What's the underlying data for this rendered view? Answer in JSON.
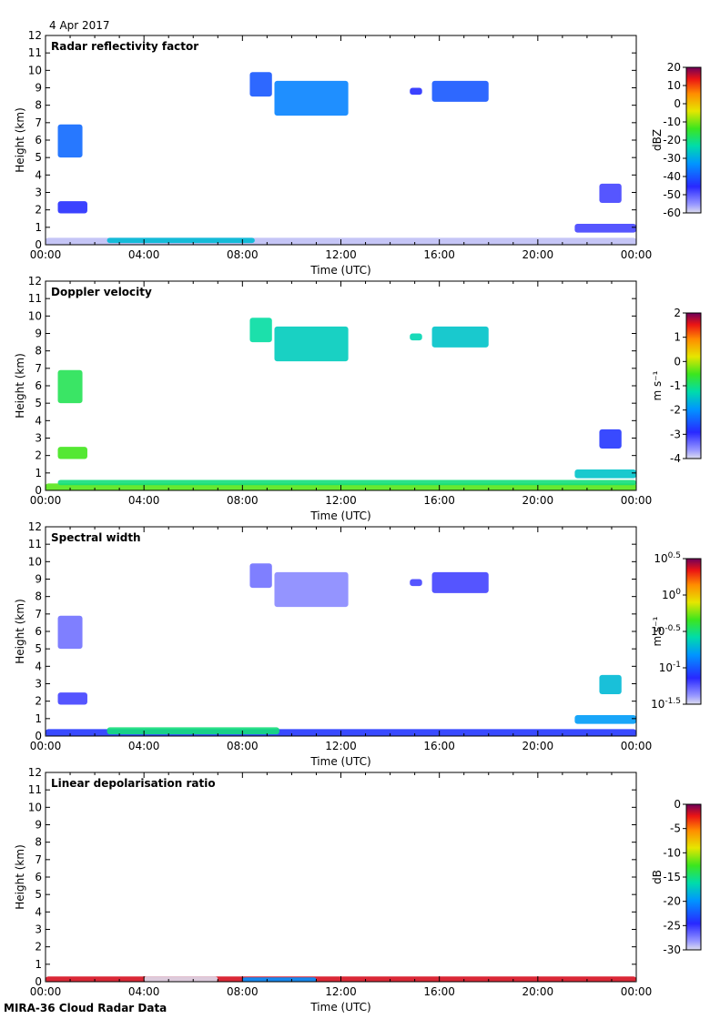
{
  "date": "4 Apr 2017",
  "footer": "MIRA-36 Cloud Radar Data",
  "chart_data": [
    {
      "type": "heatmap",
      "title": "Radar reflectivity factor",
      "xlabel": "Time (UTC)",
      "ylabel": "Height (km)",
      "xticks": [
        "00:00",
        "04:00",
        "08:00",
        "12:00",
        "16:00",
        "20:00",
        "00:00"
      ],
      "xlim_hours": [
        0,
        24
      ],
      "ylim": [
        0,
        12
      ],
      "yticks": [
        "0",
        "1",
        "2",
        "3",
        "4",
        "5",
        "6",
        "7",
        "8",
        "9",
        "10",
        "11",
        "12"
      ],
      "colorbar": {
        "label": "dBZ",
        "range": [
          -60,
          20
        ],
        "ticks": [
          "20",
          "10",
          "0",
          "-10",
          "-20",
          "-30",
          "-40",
          "-50",
          "-60"
        ]
      },
      "features": [
        {
          "t0": 8.3,
          "t1": 9.2,
          "h0": 8.5,
          "h1": 9.9,
          "value": -40
        },
        {
          "t0": 9.3,
          "t1": 12.3,
          "h0": 7.4,
          "h1": 9.4,
          "value": -35
        },
        {
          "t0": 14.8,
          "t1": 15.3,
          "h0": 8.6,
          "h1": 9.0,
          "value": -45
        },
        {
          "t0": 15.7,
          "t1": 18.0,
          "h0": 8.2,
          "h1": 9.4,
          "value": -40
        },
        {
          "t0": 0.5,
          "t1": 1.5,
          "h0": 5.0,
          "h1": 6.9,
          "value": -38
        },
        {
          "t0": 0.5,
          "t1": 1.7,
          "h0": 1.8,
          "h1": 2.5,
          "value": -45
        },
        {
          "t0": 22.5,
          "t1": 23.4,
          "h0": 2.4,
          "h1": 3.5,
          "value": -48
        },
        {
          "t0": 21.5,
          "t1": 24.0,
          "h0": 0.7,
          "h1": 1.2,
          "value": -48
        },
        {
          "t0": 0.0,
          "t1": 24.0,
          "h0": 0.0,
          "h1": 0.4,
          "value": -58
        },
        {
          "t0": 2.5,
          "t1": 8.5,
          "h0": 0.1,
          "h1": 0.4,
          "value": -28
        }
      ]
    },
    {
      "type": "heatmap",
      "title": "Doppler velocity",
      "xlabel": "Time (UTC)",
      "ylabel": "Height (km)",
      "xticks": [
        "00:00",
        "04:00",
        "08:00",
        "12:00",
        "16:00",
        "20:00",
        "00:00"
      ],
      "xlim_hours": [
        0,
        24
      ],
      "ylim": [
        0,
        12
      ],
      "yticks": [
        "0",
        "1",
        "2",
        "3",
        "4",
        "5",
        "6",
        "7",
        "8",
        "9",
        "10",
        "11",
        "12"
      ],
      "colorbar": {
        "label": "m s⁻¹",
        "range": [
          -4,
          2
        ],
        "ticks": [
          "2",
          "1",
          "0",
          "-1",
          "-2",
          "-3",
          "-4"
        ]
      },
      "features": [
        {
          "t0": 8.3,
          "t1": 9.2,
          "h0": 8.5,
          "h1": 9.9,
          "value": -1.2
        },
        {
          "t0": 9.3,
          "t1": 12.3,
          "h0": 7.4,
          "h1": 9.4,
          "value": -1.4
        },
        {
          "t0": 14.8,
          "t1": 15.3,
          "h0": 8.6,
          "h1": 9.0,
          "value": -1.3
        },
        {
          "t0": 15.7,
          "t1": 18.0,
          "h0": 8.2,
          "h1": 9.4,
          "value": -1.5
        },
        {
          "t0": 0.5,
          "t1": 1.5,
          "h0": 5.0,
          "h1": 6.9,
          "value": -0.8
        },
        {
          "t0": 0.5,
          "t1": 1.7,
          "h0": 1.8,
          "h1": 2.5,
          "value": -0.5
        },
        {
          "t0": 22.5,
          "t1": 23.4,
          "h0": 2.4,
          "h1": 3.5,
          "value": -2.8
        },
        {
          "t0": 21.5,
          "t1": 24.0,
          "h0": 0.7,
          "h1": 1.2,
          "value": -1.5
        },
        {
          "t0": 0.0,
          "t1": 24.0,
          "h0": 0.0,
          "h1": 0.4,
          "value": -0.4
        },
        {
          "t0": 0.5,
          "t1": 24.0,
          "h0": 0.3,
          "h1": 0.6,
          "value": -1.0
        }
      ]
    },
    {
      "type": "heatmap",
      "title": "Spectral width",
      "xlabel": "Time (UTC)",
      "ylabel": "Height (km)",
      "xticks": [
        "00:00",
        "04:00",
        "08:00",
        "12:00",
        "16:00",
        "20:00",
        "00:00"
      ],
      "xlim_hours": [
        0,
        24
      ],
      "ylim": [
        0,
        12
      ],
      "yticks": [
        "0",
        "1",
        "2",
        "3",
        "4",
        "5",
        "6",
        "7",
        "8",
        "9",
        "10",
        "11",
        "12"
      ],
      "colorbar": {
        "label": "m s⁻¹",
        "range": [
          -1.5,
          0.5
        ],
        "log": true,
        "ticks": [
          "10^0.5",
          "10^0",
          "10^-0.5",
          "10^-1",
          "10^-1.5"
        ]
      },
      "features": [
        {
          "t0": 8.3,
          "t1": 9.2,
          "h0": 8.5,
          "h1": 9.9,
          "value": -1.3
        },
        {
          "t0": 9.3,
          "t1": 12.3,
          "h0": 7.4,
          "h1": 9.4,
          "value": -1.35
        },
        {
          "t0": 14.8,
          "t1": 15.3,
          "h0": 8.6,
          "h1": 9.0,
          "value": -1.2
        },
        {
          "t0": 15.7,
          "t1": 18.0,
          "h0": 8.2,
          "h1": 9.4,
          "value": -1.2
        },
        {
          "t0": 0.5,
          "t1": 1.5,
          "h0": 5.0,
          "h1": 6.9,
          "value": -1.3
        },
        {
          "t0": 0.5,
          "t1": 1.7,
          "h0": 1.8,
          "h1": 2.5,
          "value": -1.2
        },
        {
          "t0": 22.5,
          "t1": 23.4,
          "h0": 2.4,
          "h1": 3.5,
          "value": -0.7
        },
        {
          "t0": 21.5,
          "t1": 24.0,
          "h0": 0.7,
          "h1": 1.2,
          "value": -0.8
        },
        {
          "t0": 0.0,
          "t1": 24.0,
          "h0": 0.0,
          "h1": 0.4,
          "value": -1.1
        },
        {
          "t0": 2.5,
          "t1": 9.5,
          "h0": 0.1,
          "h1": 0.5,
          "value": -0.5
        }
      ]
    },
    {
      "type": "heatmap",
      "title": "Linear depolarisation ratio",
      "xlabel": "Time (UTC)",
      "ylabel": "Height (km)",
      "xticks": [
        "00:00",
        "04:00",
        "08:00",
        "12:00",
        "16:00",
        "20:00",
        "00:00"
      ],
      "xlim_hours": [
        0,
        24
      ],
      "ylim": [
        0,
        12
      ],
      "yticks": [
        "0",
        "1",
        "2",
        "3",
        "4",
        "5",
        "6",
        "7",
        "8",
        "9",
        "10",
        "11",
        "12"
      ],
      "colorbar": {
        "label": "dB",
        "range": [
          -30,
          0
        ],
        "ticks": [
          "0",
          "-5",
          "-10",
          "-15",
          "-20",
          "-25",
          "-30"
        ]
      },
      "features": [
        {
          "t0": 0.0,
          "t1": 24.0,
          "h0": 0.0,
          "h1": 0.3,
          "value": -2
        },
        {
          "t0": 4.0,
          "t1": 7.0,
          "h0": 0.0,
          "h1": 0.3,
          "value": -30
        },
        {
          "t0": 8.0,
          "t1": 11.0,
          "h0": 0.0,
          "h1": 0.25,
          "value": -20
        }
      ]
    }
  ]
}
